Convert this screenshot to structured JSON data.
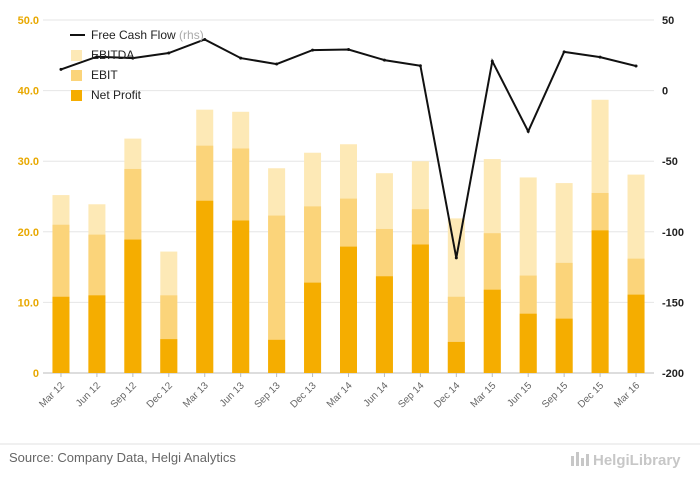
{
  "chart_data": {
    "type": "bar",
    "stacked": true,
    "categories": [
      "Mar 12",
      "Jun 12",
      "Sep 12",
      "Dec 12",
      "Mar 13",
      "Jun 13",
      "Sep 13",
      "Dec 13",
      "Mar 14",
      "Jun 14",
      "Sep 14",
      "Dec 14",
      "Mar 15",
      "Jun 15",
      "Sep 15",
      "Dec 15",
      "Mar 16"
    ],
    "series": [
      {
        "name": "EBITDA",
        "values": [
          25.2,
          23.9,
          33.2,
          17.2,
          37.3,
          37.0,
          29.0,
          31.2,
          32.4,
          28.3,
          30.0,
          21.9,
          30.3,
          27.7,
          26.9,
          38.7,
          28.1
        ],
        "color": "#fde9b6"
      },
      {
        "name": "EBIT",
        "values": [
          21.0,
          19.6,
          28.9,
          11.0,
          32.2,
          31.8,
          22.3,
          23.6,
          24.7,
          20.4,
          23.2,
          10.8,
          19.8,
          13.8,
          15.6,
          25.5,
          16.2
        ],
        "color": "#fbd47a"
      },
      {
        "name": "Net Profit",
        "values": [
          10.8,
          11.0,
          18.9,
          4.8,
          24.4,
          21.6,
          4.7,
          12.8,
          17.9,
          13.7,
          18.2,
          4.4,
          11.8,
          8.4,
          7.7,
          20.2,
          11.1
        ],
        "color": "#f5ad00"
      }
    ],
    "line_series": {
      "name": "Free Cash Flow",
      "name_suffix": "(rhs)",
      "values": [
        15.0,
        24.0,
        23.0,
        26.6,
        36.2,
        23.0,
        18.8,
        28.7,
        29.1,
        21.6,
        17.6,
        -118.5,
        20.8,
        -28.9,
        27.4,
        23.7,
        17.4
      ],
      "color": "#111111"
    },
    "ylim_left": [
      0,
      50
    ],
    "yticks_left": [
      "0",
      "10.0",
      "20.0",
      "30.0",
      "40.0",
      "50.0"
    ],
    "ylim_right": [
      -200,
      50
    ],
    "yticks_right": [
      "-200",
      "-150",
      "-100",
      "-50",
      "0",
      "50"
    ],
    "legend_position": "top-left",
    "grid": true
  },
  "source": "Source: Company Data, Helgi Analytics",
  "brand": "HelgiLibrary"
}
